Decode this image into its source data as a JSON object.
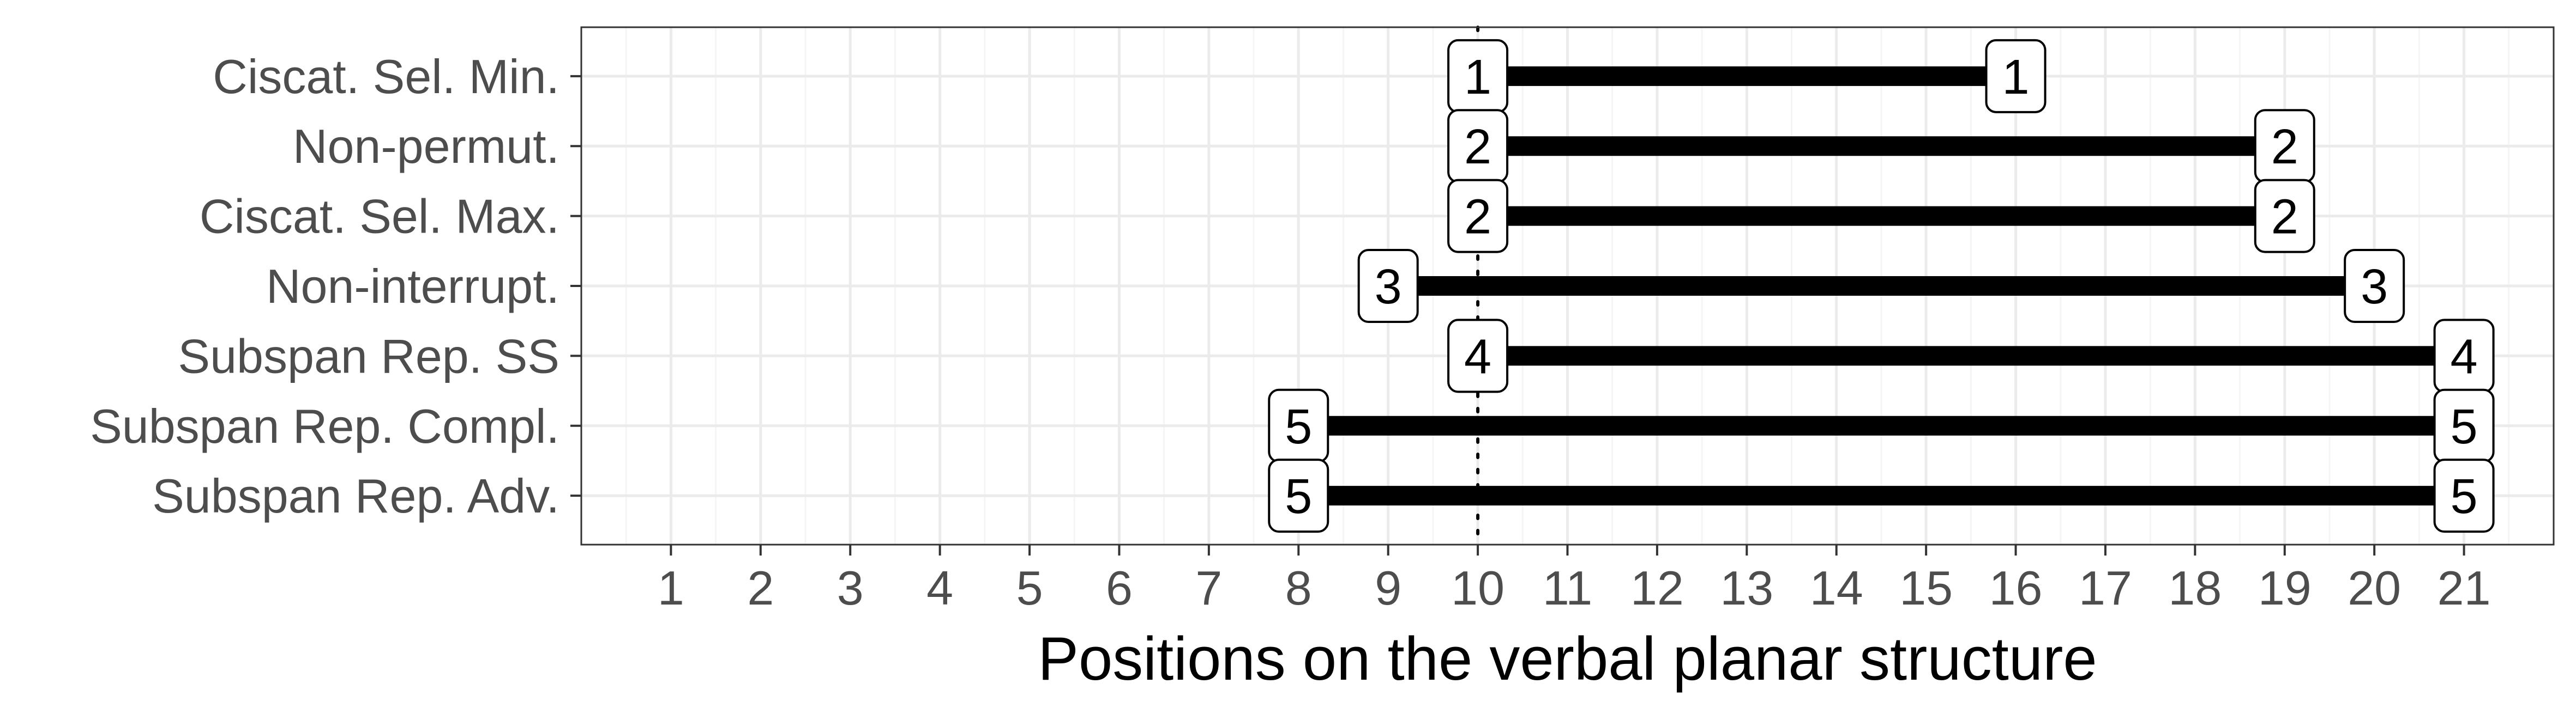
{
  "chart_data": {
    "type": "range",
    "title": "",
    "xlabel": "Positions on the verbal planar structure",
    "ylabel": "",
    "xlim": [
      0,
      22
    ],
    "x_ticks": [
      1,
      2,
      3,
      4,
      5,
      6,
      7,
      8,
      9,
      10,
      11,
      12,
      13,
      14,
      15,
      16,
      17,
      18,
      19,
      20,
      21
    ],
    "grid": true,
    "legend": "none",
    "reference_line": {
      "x": 10,
      "style": "dotted"
    },
    "rows": [
      {
        "label": "Ciscat. Sel. Min.",
        "start": 10,
        "end": 16,
        "start_label": "1",
        "end_label": "1"
      },
      {
        "label": "Non-permut.",
        "start": 10,
        "end": 19,
        "start_label": "2",
        "end_label": "2"
      },
      {
        "label": "Ciscat. Sel. Max.",
        "start": 10,
        "end": 19,
        "start_label": "2",
        "end_label": "2"
      },
      {
        "label": "Non-interrupt.",
        "start": 9,
        "end": 20,
        "start_label": "3",
        "end_label": "3"
      },
      {
        "label": "Subspan Rep. SS",
        "start": 10,
        "end": 21,
        "start_label": "4",
        "end_label": "4"
      },
      {
        "label": "Subspan Rep. Compl.",
        "start": 8,
        "end": 21,
        "start_label": "5",
        "end_label": "5"
      },
      {
        "label": "Subspan Rep. Adv.",
        "start": 8,
        "end": 21,
        "start_label": "5",
        "end_label": "5"
      }
    ],
    "colors": {
      "segment": "#000000",
      "grid_major": "#ebebeb",
      "grid_minor": "#f5f5f5",
      "panel_border": "#333333",
      "label_fill": "#ffffff"
    }
  }
}
